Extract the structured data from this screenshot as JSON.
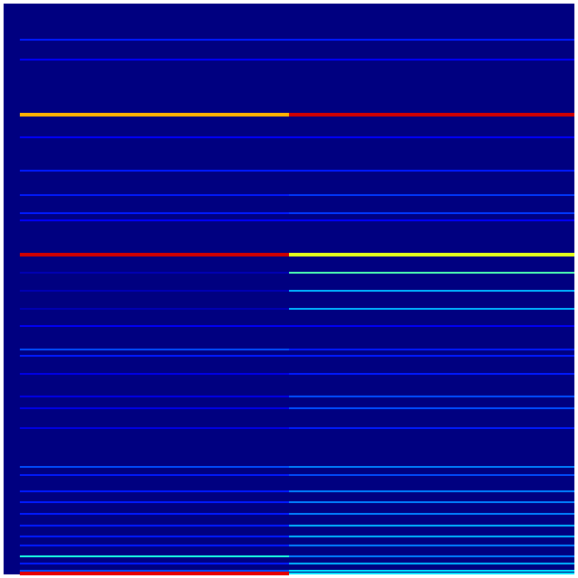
{
  "chart_data": {
    "type": "heatmap",
    "colormap": "jet",
    "vlim": [
      0,
      1
    ],
    "ylim": [
      0,
      632
    ],
    "background": 0,
    "y": [
      40,
      62,
      123,
      148,
      185,
      212,
      232,
      240,
      278,
      298,
      318,
      338,
      357,
      383,
      390,
      410,
      435,
      448,
      470,
      513,
      522,
      540,
      552,
      565,
      578,
      590,
      600,
      612,
      620,
      628,
      631
    ],
    "series": [
      {
        "values": [
          0.15,
          0.12,
          0.7,
          0.12,
          0.15,
          0.15,
          0.15,
          0.12,
          0.92,
          0.05,
          0.05,
          0.05,
          0.12,
          0.2,
          0.15,
          0.1,
          0.1,
          0.1,
          0.1,
          0.2,
          0.15,
          0.15,
          0.15,
          0.15,
          0.15,
          0.15,
          0.15,
          0.4,
          0.15,
          0.2,
          0.9
        ]
      },
      {
        "values": [
          0.15,
          0.12,
          0.92,
          0.12,
          0.15,
          0.18,
          0.18,
          0.12,
          0.6,
          0.45,
          0.3,
          0.3,
          0.12,
          0.15,
          0.15,
          0.15,
          0.2,
          0.2,
          0.15,
          0.25,
          0.2,
          0.25,
          0.25,
          0.25,
          0.3,
          0.3,
          0.25,
          0.25,
          0.3,
          0.35,
          0.35
        ]
      }
    ]
  }
}
